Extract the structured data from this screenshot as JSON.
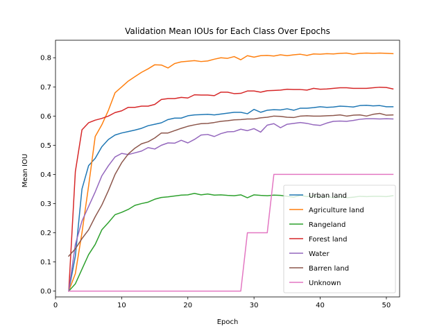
{
  "chart_data": {
    "type": "line",
    "title": "Validation Mean IOUs for Each Class Over Epochs",
    "xlabel": "Epoch",
    "ylabel": "Mean IOU",
    "xlim": [
      0,
      52
    ],
    "ylim": [
      -0.02,
      0.86
    ],
    "xticks": [
      0,
      10,
      20,
      30,
      40,
      50
    ],
    "yticks": [
      0.0,
      0.1,
      0.2,
      0.3,
      0.4,
      0.5,
      0.6,
      0.7,
      0.8
    ],
    "xtick_labels": [
      "0",
      "10",
      "20",
      "30",
      "40",
      "50"
    ],
    "ytick_labels": [
      "0.0",
      "0.1",
      "0.2",
      "0.3",
      "0.4",
      "0.5",
      "0.6",
      "0.7",
      "0.8"
    ],
    "grid": false,
    "legend_position": "lower-right",
    "x": [
      2,
      3,
      4,
      5,
      6,
      7,
      8,
      9,
      10,
      11,
      12,
      13,
      14,
      15,
      16,
      17,
      18,
      19,
      20,
      21,
      22,
      23,
      24,
      25,
      26,
      27,
      28,
      29,
      30,
      31,
      32,
      33,
      34,
      35,
      36,
      37,
      38,
      39,
      40,
      41,
      42,
      43,
      44,
      45,
      46,
      47,
      48,
      49,
      50,
      51
    ],
    "series": [
      {
        "name": "Urban land",
        "color": "#1f77b4",
        "values": [
          0.0,
          0.12,
          0.35,
          0.43,
          0.455,
          0.495,
          0.52,
          0.535,
          0.542,
          0.547,
          0.552,
          0.558,
          0.567,
          0.572,
          0.577,
          0.588,
          0.593,
          0.593,
          0.601,
          0.604,
          0.605,
          0.606,
          0.604,
          0.607,
          0.61,
          0.613,
          0.613,
          0.608,
          0.623,
          0.613,
          0.62,
          0.622,
          0.621,
          0.625,
          0.62,
          0.627,
          0.627,
          0.629,
          0.632,
          0.63,
          0.631,
          0.634,
          0.633,
          0.631,
          0.636,
          0.637,
          0.635,
          0.636,
          0.632,
          0.632
        ]
      },
      {
        "name": "Agriculture land",
        "color": "#ff7f0e",
        "values": [
          0.0,
          0.06,
          0.2,
          0.36,
          0.53,
          0.57,
          0.62,
          0.68,
          0.7,
          0.72,
          0.735,
          0.75,
          0.762,
          0.776,
          0.775,
          0.765,
          0.78,
          0.786,
          0.788,
          0.79,
          0.787,
          0.789,
          0.795,
          0.8,
          0.798,
          0.804,
          0.793,
          0.807,
          0.802,
          0.807,
          0.808,
          0.806,
          0.81,
          0.807,
          0.81,
          0.812,
          0.808,
          0.813,
          0.812,
          0.814,
          0.813,
          0.815,
          0.816,
          0.812,
          0.815,
          0.816,
          0.815,
          0.816,
          0.815,
          0.814
        ]
      },
      {
        "name": "Rangeland",
        "color": "#2ca02c",
        "values": [
          0.0,
          0.025,
          0.075,
          0.125,
          0.16,
          0.21,
          0.235,
          0.262,
          0.27,
          0.28,
          0.294,
          0.3,
          0.305,
          0.315,
          0.321,
          0.323,
          0.326,
          0.329,
          0.33,
          0.335,
          0.33,
          0.333,
          0.329,
          0.33,
          0.328,
          0.327,
          0.33,
          0.32,
          0.33,
          0.328,
          0.327,
          0.329,
          0.328,
          0.325,
          0.322,
          0.328,
          0.324,
          0.327,
          0.321,
          0.325,
          0.32,
          0.323,
          0.32,
          0.322,
          0.325,
          0.324,
          0.325,
          0.325,
          0.324,
          0.327
        ]
      },
      {
        "name": "Forest land",
        "color": "#d62728",
        "values": [
          0.0,
          0.41,
          0.553,
          0.577,
          0.586,
          0.592,
          0.6,
          0.612,
          0.618,
          0.63,
          0.63,
          0.634,
          0.634,
          0.64,
          0.657,
          0.66,
          0.66,
          0.664,
          0.662,
          0.673,
          0.672,
          0.672,
          0.67,
          0.682,
          0.682,
          0.677,
          0.678,
          0.686,
          0.686,
          0.682,
          0.687,
          0.688,
          0.689,
          0.692,
          0.691,
          0.691,
          0.689,
          0.695,
          0.692,
          0.693,
          0.695,
          0.697,
          0.697,
          0.695,
          0.695,
          0.695,
          0.697,
          0.699,
          0.698,
          0.693
        ]
      },
      {
        "name": "Water",
        "color": "#9467bd",
        "values": [
          0.0,
          0.16,
          0.24,
          0.29,
          0.34,
          0.395,
          0.43,
          0.46,
          0.472,
          0.468,
          0.474,
          0.48,
          0.492,
          0.487,
          0.5,
          0.508,
          0.507,
          0.517,
          0.508,
          0.52,
          0.535,
          0.537,
          0.53,
          0.54,
          0.546,
          0.547,
          0.555,
          0.55,
          0.557,
          0.545,
          0.569,
          0.574,
          0.56,
          0.572,
          0.575,
          0.578,
          0.575,
          0.57,
          0.568,
          0.576,
          0.582,
          0.583,
          0.582,
          0.585,
          0.589,
          0.591,
          0.591,
          0.59,
          0.591,
          0.59
        ]
      },
      {
        "name": "Barren land",
        "color": "#8c564b",
        "values": [
          0.12,
          0.145,
          0.18,
          0.21,
          0.255,
          0.295,
          0.345,
          0.4,
          0.44,
          0.47,
          0.49,
          0.505,
          0.512,
          0.525,
          0.542,
          0.542,
          0.55,
          0.558,
          0.565,
          0.57,
          0.574,
          0.575,
          0.578,
          0.582,
          0.584,
          0.587,
          0.588,
          0.59,
          0.59,
          0.594,
          0.596,
          0.6,
          0.599,
          0.596,
          0.595,
          0.6,
          0.601,
          0.6,
          0.6,
          0.601,
          0.602,
          0.604,
          0.6,
          0.603,
          0.604,
          0.6,
          0.606,
          0.609,
          0.603,
          0.604
        ]
      },
      {
        "name": "Unknown",
        "color": "#e377c2",
        "values": [
          0.0,
          0.0,
          0.0,
          0.0,
          0.0,
          0.0,
          0.0,
          0.0,
          0.0,
          0.0,
          0.0,
          0.0,
          0.0,
          0.0,
          0.0,
          0.0,
          0.0,
          0.0,
          0.0,
          0.0,
          0.0,
          0.0,
          0.0,
          0.0,
          0.0,
          0.0,
          0.0,
          0.2,
          0.2,
          0.2,
          0.2,
          0.4,
          0.4,
          0.4,
          0.4,
          0.4,
          0.4,
          0.4,
          0.4,
          0.4,
          0.4,
          0.4,
          0.4,
          0.4,
          0.4,
          0.4,
          0.4,
          0.4,
          0.4,
          0.4
        ]
      }
    ]
  }
}
